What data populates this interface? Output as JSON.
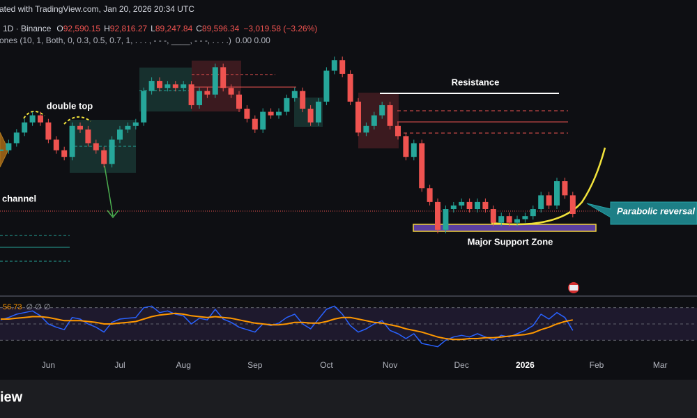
{
  "header": {
    "published": "ated with TradingView.com, Jan 20, 2026 20:34 UTC",
    "symbol": "1D · Binance",
    "ohlc": [
      {
        "label": "O",
        "value": "92,590.15"
      },
      {
        "label": "H",
        "value": "92,816.27"
      },
      {
        "label": "L",
        "value": "89,247.84"
      },
      {
        "label": "C",
        "value": "89,596.34"
      }
    ],
    "change": "−3,019.58 (−3.26%)",
    "indicator": "ones (10, 1, Both, 0, 0.3, 0.5, 0.7, 1, . . . , - - -, ____, - - -, . . . .)",
    "indicator_values": "0.00  0.00"
  },
  "annotations": {
    "double_top": "double top",
    "channel": "channel",
    "resistance": "Resistance",
    "parabolic": "Parabolic reversal",
    "support": "Major Support Zone"
  },
  "footer": "iew",
  "chart_data": [
    {
      "type": "candlestick",
      "up_color": "#26a69a",
      "down_color": "#ef5350",
      "ylim": [
        71000,
        138000
      ],
      "categories": [
        null,
        null,
        null,
        null,
        null,
        null,
        "Jun",
        null,
        null,
        null,
        null,
        null,
        null,
        null,
        null,
        "Jul",
        null,
        null,
        null,
        null,
        null,
        null,
        null,
        "Aug",
        null,
        null,
        null,
        null,
        null,
        null,
        null,
        null,
        "Sep",
        null,
        null,
        null,
        null,
        null,
        null,
        null,
        null,
        "Oct",
        null,
        null,
        null,
        null,
        null,
        null,
        null,
        "Nov",
        null,
        null,
        null,
        null,
        null,
        null,
        null,
        null,
        "Dec",
        null,
        null,
        null,
        null,
        null,
        null,
        null,
        "2026",
        null,
        null,
        null,
        null,
        null,
        null,
        null,
        null,
        "Feb",
        null,
        null,
        null,
        null,
        null,
        null,
        null,
        "Mar",
        null,
        null,
        null,
        null
      ],
      "values": [
        104000,
        105600,
        108000,
        110300,
        111900,
        110300,
        106400,
        104000,
        102500,
        109500,
        108700,
        105600,
        104000,
        100900,
        106400,
        108700,
        109500,
        110300,
        117400,
        119700,
        118100,
        118900,
        118100,
        118900,
        114200,
        117400,
        116600,
        122800,
        118100,
        116600,
        113400,
        111100,
        108700,
        112700,
        111900,
        112700,
        115800,
        117400,
        113400,
        110300,
        115000,
        122000,
        124400,
        121300,
        115000,
        108000,
        109500,
        111900,
        114200,
        109500,
        107200,
        102500,
        105600,
        95400,
        92300,
        86000,
        90700,
        91500,
        92300,
        90700,
        92300,
        90700,
        87600,
        89100,
        87600,
        88400,
        89100,
        90700,
        93800,
        91500,
        97000,
        93800,
        89596.34,
        null,
        null,
        null,
        null,
        null,
        null,
        null,
        null,
        null,
        null,
        null,
        null,
        null,
        null,
        null
      ]
    },
    {
      "type": "line",
      "legend": "56.73",
      "legend_extra": "∅ ∅ ∅",
      "ylim": [
        20,
        80
      ],
      "bands": [
        30,
        50,
        70
      ],
      "series": [
        {
          "color": "#2962ff",
          "values": [
            55,
            58,
            62,
            64,
            66,
            60,
            50,
            46,
            43,
            58,
            56,
            50,
            46,
            40,
            52,
            56,
            57,
            58,
            70,
            72,
            64,
            66,
            62,
            60,
            50,
            57,
            55,
            68,
            56,
            52,
            46,
            43,
            40,
            50,
            48,
            51,
            58,
            62,
            50,
            44,
            56,
            68,
            72,
            62,
            48,
            40,
            44,
            50,
            54,
            42,
            38,
            32,
            38,
            26,
            24,
            22,
            30,
            34,
            36,
            34,
            38,
            34,
            30,
            36,
            34,
            38,
            42,
            48,
            62,
            56,
            64,
            58,
            42,
            null,
            null,
            null,
            null,
            null,
            null,
            null,
            null,
            null,
            null,
            null,
            null,
            null,
            null,
            null
          ]
        },
        {
          "color": "#ff9800",
          "values": [
            56,
            56,
            57,
            58,
            59,
            59,
            58,
            56,
            54,
            54,
            54,
            53,
            52,
            50,
            50,
            51,
            52,
            53,
            56,
            59,
            61,
            62,
            63,
            62,
            60,
            59,
            58,
            59,
            58,
            57,
            55,
            53,
            51,
            50,
            49,
            49,
            50,
            52,
            52,
            51,
            51,
            53,
            56,
            58,
            58,
            56,
            54,
            52,
            51,
            49,
            47,
            44,
            42,
            40,
            37,
            34,
            32,
            31,
            31,
            32,
            32,
            33,
            33,
            34,
            35,
            36,
            37,
            39,
            43,
            46,
            50,
            53,
            55,
            null,
            null,
            null,
            null,
            null,
            null,
            null,
            null,
            null,
            null,
            null,
            null,
            null,
            null,
            null
          ]
        }
      ]
    }
  ]
}
